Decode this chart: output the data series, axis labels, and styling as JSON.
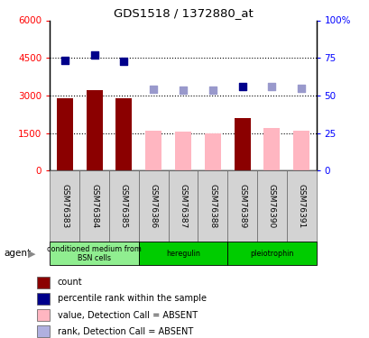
{
  "title": "GDS1518 / 1372880_at",
  "samples": [
    "GSM76383",
    "GSM76384",
    "GSM76385",
    "GSM76386",
    "GSM76387",
    "GSM76388",
    "GSM76389",
    "GSM76390",
    "GSM76391"
  ],
  "bar_values": [
    2900,
    3200,
    2900,
    1600,
    1550,
    1500,
    2100,
    1700,
    1600
  ],
  "bar_colors": [
    "#8b0000",
    "#8b0000",
    "#8b0000",
    "#ffb6c1",
    "#ffb6c1",
    "#ffb6c1",
    "#8b0000",
    "#ffb6c1",
    "#ffb6c1"
  ],
  "dot_values": [
    4400,
    4600,
    4350,
    3250,
    3200,
    3200,
    3350,
    3350,
    3300
  ],
  "dot_colors": [
    "#00008b",
    "#00008b",
    "#00008b",
    "#9999cc",
    "#9999cc",
    "#9999cc",
    "#00008b",
    "#9999cc",
    "#9999cc"
  ],
  "ylim_left": [
    0,
    6000
  ],
  "yticks_left": [
    0,
    1500,
    3000,
    4500,
    6000
  ],
  "yticks_right": [
    0,
    25,
    50,
    75,
    100
  ],
  "agent_groups": [
    {
      "label": "conditioned medium from\nBSN cells",
      "start": 0,
      "end": 3,
      "color": "#90ee90"
    },
    {
      "label": "heregulin",
      "start": 3,
      "end": 6,
      "color": "#00cc00"
    },
    {
      "label": "pleiotrophin",
      "start": 6,
      "end": 9,
      "color": "#00cc00"
    }
  ],
  "legend_items": [
    {
      "color": "#8b0000",
      "label": "count"
    },
    {
      "color": "#00008b",
      "label": "percentile rank within the sample"
    },
    {
      "color": "#ffb6c1",
      "label": "value, Detection Call = ABSENT"
    },
    {
      "color": "#b0b0e0",
      "label": "rank, Detection Call = ABSENT"
    }
  ],
  "bar_width": 0.55,
  "dot_size": 40,
  "background_color": "#ffffff"
}
